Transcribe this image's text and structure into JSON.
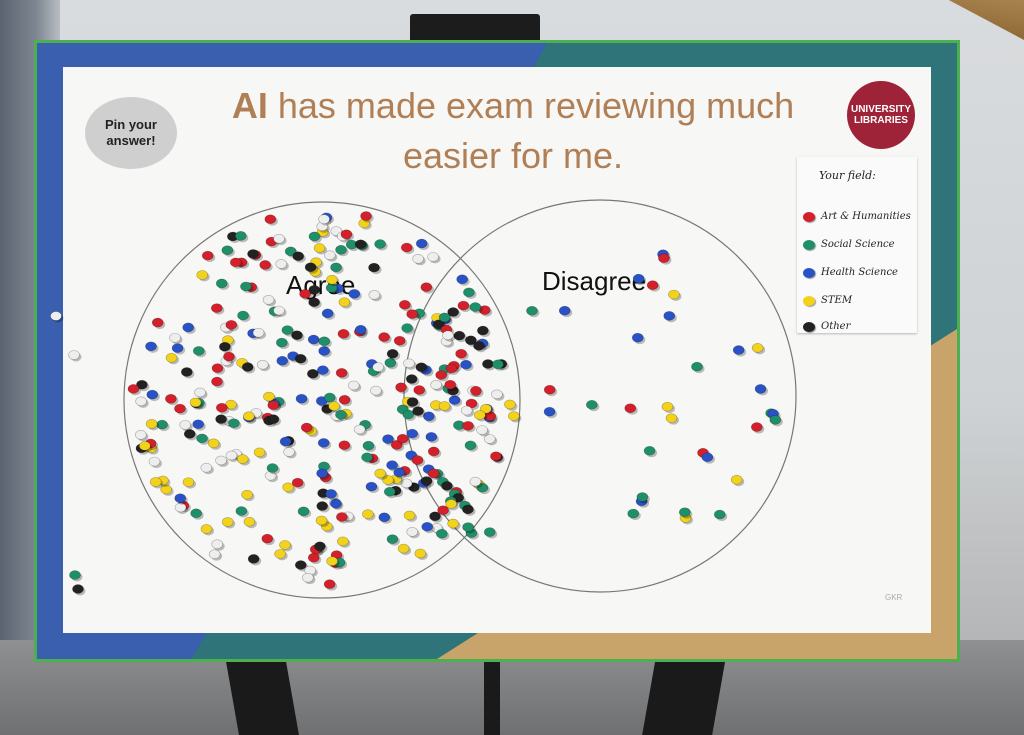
{
  "badge": {
    "text": "Pin your answer!"
  },
  "title": {
    "highlight": "AI",
    "rest_line1": "has made exam reviewing much",
    "line2": "easier for me."
  },
  "logo": {
    "line1": "UNIVERSITY",
    "line2": "LIBRARIES"
  },
  "legend": {
    "title": "Your field:",
    "items": [
      {
        "label": "Art & Humanities",
        "color": "#d3202a"
      },
      {
        "label": "Social Science",
        "color": "#1e8f6a"
      },
      {
        "label": "Health Science",
        "color": "#2a52c7"
      },
      {
        "label": "STEM",
        "color": "#f3d21b"
      },
      {
        "label": "Other",
        "color": "#222222"
      }
    ]
  },
  "circles": {
    "left": "Agree",
    "right": "Disagree"
  },
  "initials": "GKR",
  "pin_colors": {
    "red": "#d3202a",
    "green": "#1e8f6a",
    "blue": "#2a52c7",
    "yellow": "#f3d21b",
    "white": "#eeeeee",
    "black": "#222222"
  }
}
